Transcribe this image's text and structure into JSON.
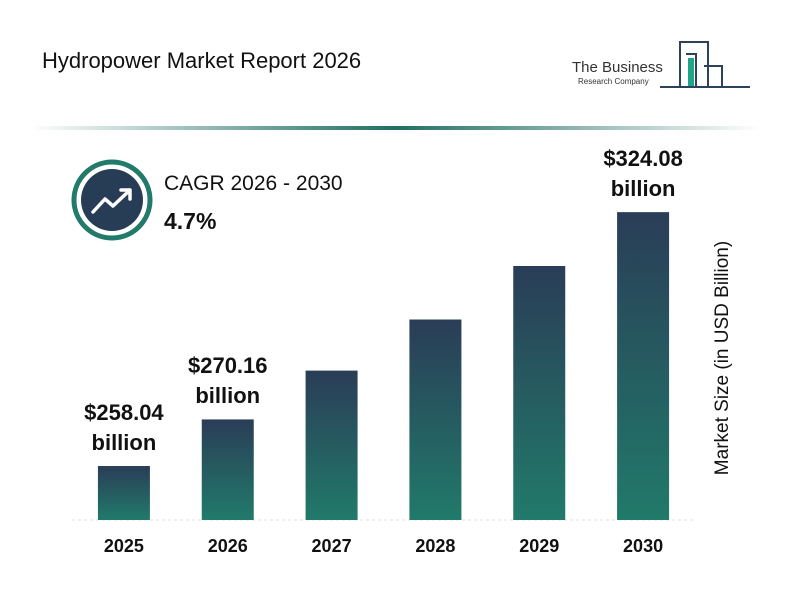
{
  "chart_data": {
    "type": "bar",
    "title": "Hydropower Market Report 2026",
    "logo": {
      "line1": "The Business",
      "line2": "Research Company"
    },
    "cagr": {
      "label": "CAGR 2026 - 2030",
      "value": "4.7%"
    },
    "y_label": "Market Size (in USD Billion)",
    "categories": [
      "2025",
      "2026",
      "2027",
      "2028",
      "2029",
      "2030"
    ],
    "values": [
      258.04,
      270.16,
      282.86,
      296.15,
      310.07,
      324.08
    ],
    "value_labels": [
      "$258.04 billion",
      "$270.16 billion",
      null,
      null,
      null,
      "$324.08 billion"
    ],
    "color": [
      "#2a3d57",
      "#217a6a"
    ],
    "ylim": [
      244,
      334
    ]
  }
}
